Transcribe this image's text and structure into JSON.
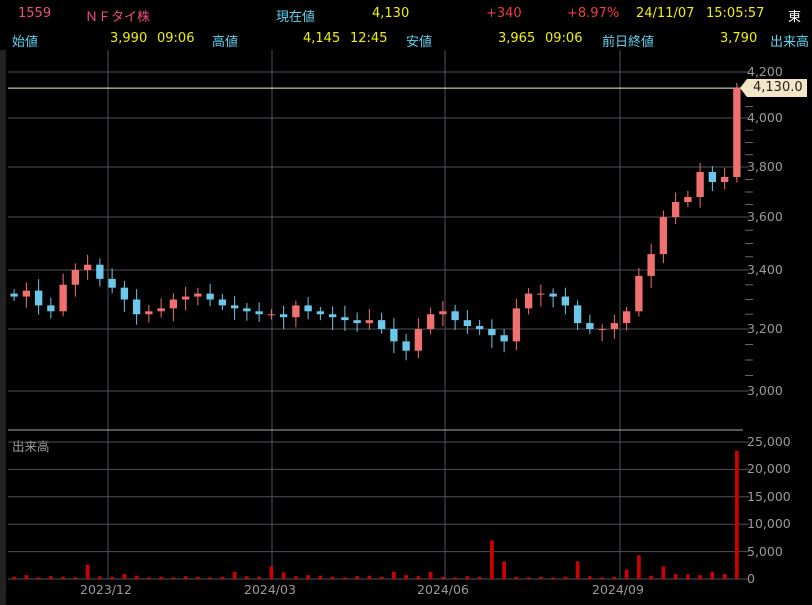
{
  "header": {
    "code": "1559",
    "name": "ＮＦタイ株",
    "current_label": "現在値",
    "current": "4,130",
    "change": "+340",
    "change_pct": "+8.97%",
    "date": "24/11/07",
    "time": "15:05:57",
    "exchange": "東",
    "open_label": "始値",
    "open": "3,990",
    "open_time": "09:06",
    "high_label": "高値",
    "high": "4,145",
    "high_time": "12:45",
    "low_label": "安値",
    "low": "3,965",
    "low_time": "09:06",
    "prev_label": "前日終値",
    "prev": "3,790",
    "volume_label": "出来高"
  },
  "price_tag": "4,130.0",
  "colors": {
    "up": "#f07070",
    "down": "#6cc8ea",
    "volume": "#d00000",
    "grid": "#50505a"
  },
  "chart_data": [
    {
      "type": "candlestick",
      "price_ticks": [
        "4,200",
        "4,000",
        "3,800",
        "3,600",
        "3,400",
        "3,200",
        "3,000"
      ],
      "x_ticks": [
        "2023/12",
        "2024/03",
        "2024/06",
        "2024/09"
      ],
      "last_price": 4130,
      "closes": [
        3310,
        3330,
        3280,
        3260,
        3350,
        3400,
        3420,
        3370,
        3340,
        3300,
        3250,
        3260,
        3270,
        3300,
        3310,
        3320,
        3300,
        3280,
        3270,
        3260,
        3250,
        3250,
        3240,
        3280,
        3260,
        3250,
        3240,
        3230,
        3220,
        3230,
        3200,
        3160,
        3130,
        3200,
        3250,
        3260,
        3230,
        3210,
        3200,
        3180,
        3160,
        3270,
        3320,
        3320,
        3310,
        3280,
        3220,
        3200,
        3200,
        3220,
        3260,
        3380,
        3460,
        3600,
        3660,
        3680,
        3780,
        3740,
        3760,
        4130
      ]
    },
    {
      "type": "bar",
      "label": "出来高",
      "y_ticks": [
        "25,000",
        "20,000",
        "15,000",
        "10,000",
        "5,000",
        "0"
      ],
      "values": [
        400,
        700,
        300,
        500,
        400,
        300,
        2600,
        500,
        400,
        900,
        600,
        300,
        400,
        300,
        500,
        400,
        300,
        400,
        1300,
        500,
        400,
        2300,
        1200,
        500,
        700,
        600,
        400,
        300,
        500,
        600,
        400,
        1300,
        700,
        500,
        1300,
        400,
        300,
        500,
        400,
        7000,
        3200,
        400,
        300,
        400,
        300,
        400,
        3200,
        500,
        300,
        400,
        1700,
        4300,
        600,
        2300,
        900,
        800,
        700,
        1300,
        900,
        23400
      ]
    }
  ]
}
